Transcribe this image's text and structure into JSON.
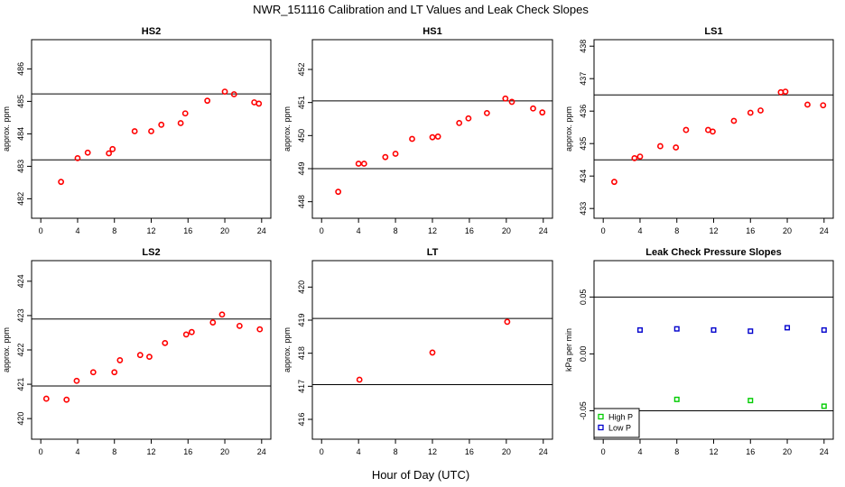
{
  "figure": {
    "title": "NWR_151116  Calibration and LT Values and Leak Check Slopes",
    "xlabel": "Hour of Day (UTC)"
  },
  "chart_data": [
    {
      "type": "scatter",
      "title": "HS2",
      "ylabel": "approx. ppm",
      "xlim": [
        -1,
        25
      ],
      "ylim": [
        481.4,
        486.9
      ],
      "xticks": [
        0,
        4,
        8,
        12,
        16,
        20,
        24
      ],
      "yticks": [
        482,
        483,
        484,
        485,
        486
      ],
      "hlines": [
        485.23,
        483.2
      ],
      "series": [
        {
          "color": "#ff0000",
          "marker": "circle",
          "x": [
            2.2,
            4.0,
            5.1,
            7.4,
            7.8,
            10.2,
            12.0,
            13.1,
            15.2,
            15.7,
            18.1,
            20.0,
            21.0,
            23.2,
            23.7
          ],
          "y": [
            482.52,
            483.25,
            483.42,
            483.4,
            483.53,
            484.08,
            484.08,
            484.28,
            484.33,
            484.63,
            485.02,
            485.3,
            485.22,
            484.97,
            484.93
          ]
        }
      ]
    },
    {
      "type": "scatter",
      "title": "HS1",
      "ylabel": "approx. ppm",
      "xlim": [
        -1,
        25
      ],
      "ylim": [
        447.5,
        452.9
      ],
      "xticks": [
        0,
        4,
        8,
        12,
        16,
        20,
        24
      ],
      "yticks": [
        448,
        449,
        450,
        451,
        452
      ],
      "hlines": [
        451.05,
        449.0
      ],
      "series": [
        {
          "color": "#ff0000",
          "marker": "circle",
          "x": [
            1.8,
            4.0,
            4.6,
            6.9,
            8.0,
            9.8,
            12.0,
            12.6,
            14.9,
            15.9,
            17.9,
            19.9,
            20.6,
            22.9,
            23.9
          ],
          "y": [
            448.3,
            449.15,
            449.15,
            449.35,
            449.45,
            449.9,
            449.95,
            449.97,
            450.38,
            450.52,
            450.68,
            451.12,
            451.02,
            450.82,
            450.7
          ]
        }
      ]
    },
    {
      "type": "scatter",
      "title": "LS1",
      "ylabel": "approx. ppm",
      "xlim": [
        -1,
        25
      ],
      "ylim": [
        432.7,
        438.2
      ],
      "xticks": [
        0,
        4,
        8,
        12,
        16,
        20,
        24
      ],
      "yticks": [
        433,
        434,
        435,
        436,
        437,
        438
      ],
      "hlines": [
        436.5,
        434.5
      ],
      "series": [
        {
          "color": "#ff0000",
          "marker": "circle",
          "x": [
            1.2,
            3.4,
            4.0,
            6.2,
            7.9,
            9.0,
            11.4,
            11.9,
            14.2,
            16.0,
            17.1,
            19.3,
            19.8,
            22.2,
            23.9
          ],
          "y": [
            433.82,
            434.55,
            434.6,
            434.92,
            434.88,
            435.42,
            435.42,
            435.37,
            435.7,
            435.95,
            436.02,
            436.58,
            436.6,
            436.2,
            436.18
          ]
        }
      ]
    },
    {
      "type": "scatter",
      "title": "LS2",
      "ylabel": "approx. ppm",
      "xlim": [
        -1,
        25
      ],
      "ylim": [
        419.4,
        424.6
      ],
      "xticks": [
        0,
        4,
        8,
        12,
        16,
        20,
        24
      ],
      "yticks": [
        420,
        421,
        422,
        423,
        424
      ],
      "hlines": [
        422.9,
        420.95
      ],
      "series": [
        {
          "color": "#ff0000",
          "marker": "circle",
          "x": [
            0.6,
            2.8,
            3.9,
            5.7,
            8.0,
            8.6,
            10.8,
            11.8,
            13.5,
            15.8,
            16.4,
            18.7,
            19.7,
            21.6,
            23.8
          ],
          "y": [
            420.58,
            420.55,
            421.1,
            421.35,
            421.35,
            421.7,
            421.85,
            421.8,
            422.2,
            422.45,
            422.52,
            422.8,
            423.03,
            422.7,
            422.6
          ]
        }
      ]
    },
    {
      "type": "scatter",
      "title": "LT",
      "ylabel": "approx. ppm",
      "xlim": [
        -1,
        25
      ],
      "ylim": [
        415.4,
        420.8
      ],
      "xticks": [
        0,
        4,
        8,
        12,
        16,
        20,
        24
      ],
      "yticks": [
        416,
        417,
        418,
        419,
        420
      ],
      "hlines": [
        419.05,
        417.05
      ],
      "series": [
        {
          "color": "#ff0000",
          "marker": "circle",
          "x": [
            4.1,
            12.0,
            20.1
          ],
          "y": [
            417.2,
            418.02,
            418.95
          ]
        }
      ]
    },
    {
      "type": "scatter",
      "title": "Leak Check Pressure Slopes",
      "ylabel": "kPa per min",
      "xlim": [
        -1,
        25
      ],
      "ylim": [
        -0.075,
        0.082
      ],
      "xticks": [
        0,
        4,
        8,
        12,
        16,
        20,
        24
      ],
      "yticks": [
        -0.05,
        0.0,
        0.05
      ],
      "ytick_labels": [
        "-0.05",
        "0.00",
        "0.05"
      ],
      "hlines": [
        0.05,
        -0.05
      ],
      "legend": {
        "placement": "bottom-left"
      },
      "series": [
        {
          "name": "High P",
          "color": "#00cc00",
          "marker": "square",
          "x": [
            8,
            16,
            24
          ],
          "y": [
            -0.04,
            -0.041,
            -0.046
          ]
        },
        {
          "name": "Low P",
          "color": "#0000cc",
          "marker": "square",
          "x": [
            4,
            8,
            12,
            16,
            20,
            24
          ],
          "y": [
            0.021,
            0.022,
            0.021,
            0.02,
            0.023,
            0.021
          ]
        }
      ]
    }
  ]
}
